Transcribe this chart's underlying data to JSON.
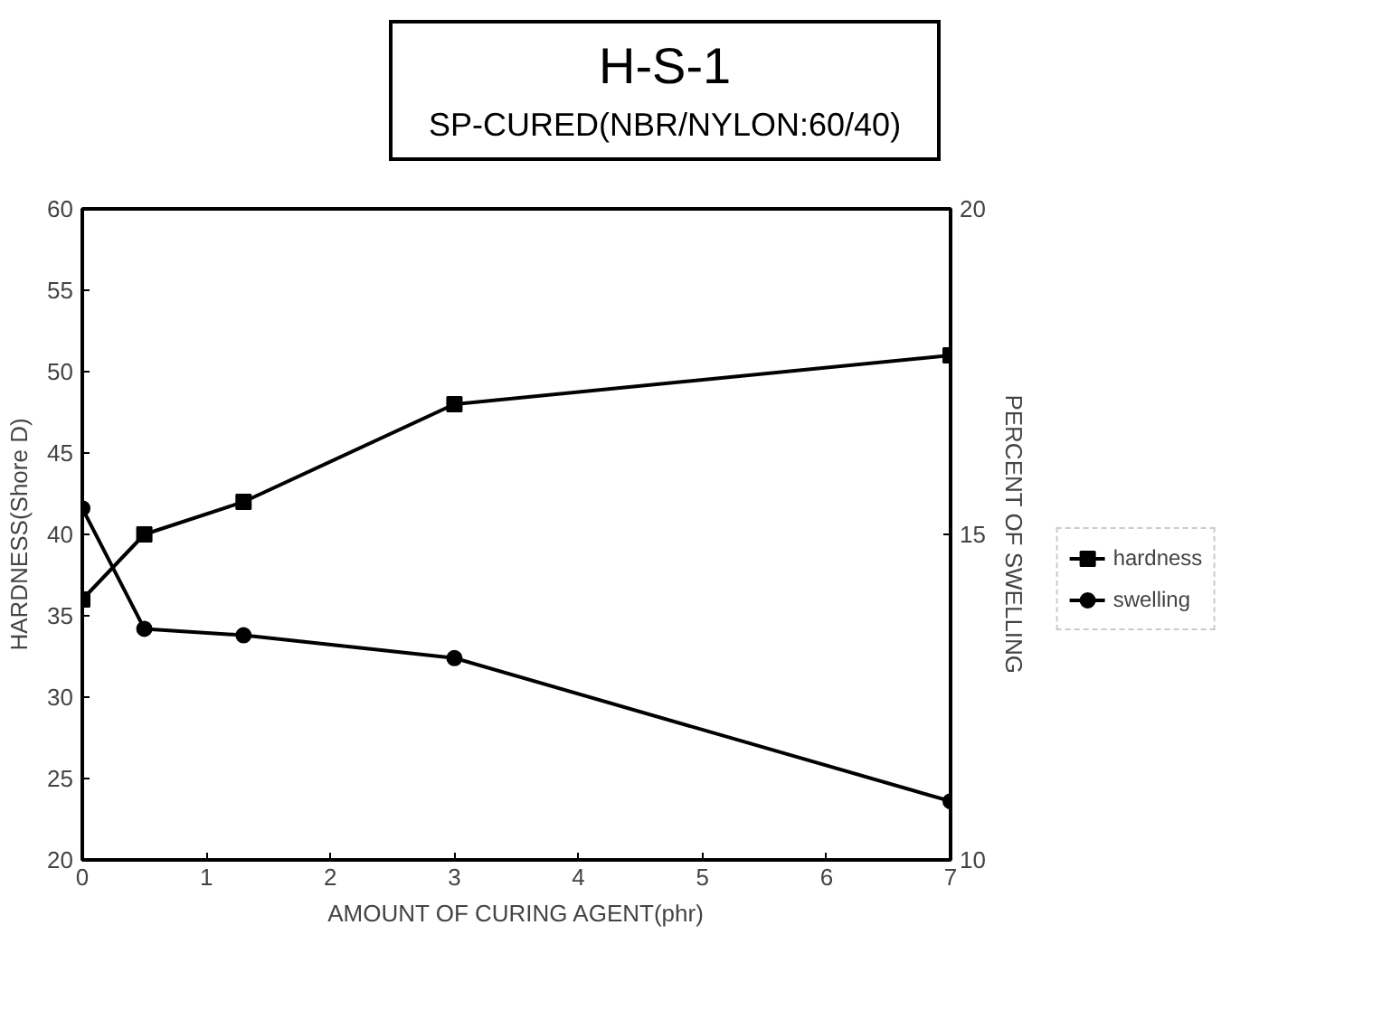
{
  "chart_data": {
    "type": "line",
    "title": "H-S-1",
    "subtitle": "SP-CURED(NBR/NYLON:60/40)",
    "xlabel": "AMOUNT OF CURING AGENT(phr)",
    "ylabel": "HARDNESS(Shore D)",
    "y2label": "PERCENT OF SWELLING",
    "x": [
      0,
      0.5,
      1.3,
      3,
      7
    ],
    "series": [
      {
        "name": "hardness",
        "color": "#000000",
        "values": [
          36,
          40,
          42,
          48,
          51
        ],
        "marker": "square"
      },
      {
        "name": "swelling",
        "color": "#000000",
        "values": [
          15.4,
          13.55,
          13.45,
          13.1,
          10.9
        ],
        "marker": "circle",
        "axis": "y2"
      }
    ],
    "xlim": [
      0,
      7
    ],
    "xticks": [
      0,
      1,
      2,
      3,
      4,
      5,
      6,
      7
    ],
    "ylim": [
      20,
      60
    ],
    "yticks": [
      20,
      25,
      30,
      35,
      40,
      45,
      50,
      55,
      60
    ],
    "y2lim": [
      10,
      20
    ],
    "y2ticks": [
      10,
      15,
      20
    ],
    "grid": false,
    "legend": "right",
    "line_style": "solid"
  }
}
